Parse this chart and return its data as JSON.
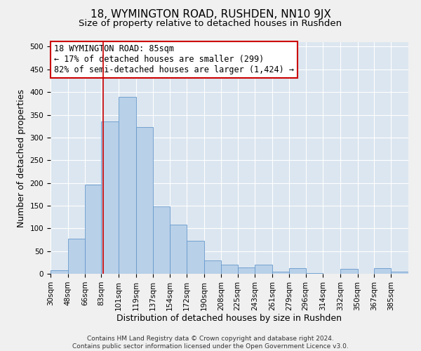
{
  "title": "18, WYMINGTON ROAD, RUSHDEN, NN10 9JX",
  "subtitle": "Size of property relative to detached houses in Rushden",
  "xlabel": "Distribution of detached houses by size in Rushden",
  "ylabel": "Number of detached properties",
  "bin_labels": [
    "30sqm",
    "48sqm",
    "66sqm",
    "83sqm",
    "101sqm",
    "119sqm",
    "137sqm",
    "154sqm",
    "172sqm",
    "190sqm",
    "208sqm",
    "225sqm",
    "243sqm",
    "261sqm",
    "279sqm",
    "296sqm",
    "314sqm",
    "332sqm",
    "350sqm",
    "367sqm",
    "385sqm"
  ],
  "bin_edges": [
    30,
    48,
    66,
    83,
    101,
    119,
    137,
    154,
    172,
    190,
    208,
    225,
    243,
    261,
    279,
    296,
    314,
    332,
    350,
    367,
    385
  ],
  "values": [
    8,
    78,
    197,
    336,
    390,
    323,
    149,
    108,
    73,
    30,
    20,
    14,
    20,
    5,
    13,
    1,
    0,
    11,
    0,
    12,
    5
  ],
  "bar_color": "#b8d0e8",
  "bar_edge_color": "#6699cc",
  "property_size": 85,
  "annotation_line1": "18 WYMINGTON ROAD: 85sqm",
  "annotation_line2": "← 17% of detached houses are smaller (299)",
  "annotation_line3": "82% of semi-detached houses are larger (1,424) →",
  "annotation_box_color": "#ffffff",
  "annotation_box_edge_color": "#cc0000",
  "vline_color": "#cc0000",
  "ylim": [
    0,
    510
  ],
  "yticks": [
    0,
    50,
    100,
    150,
    200,
    250,
    300,
    350,
    400,
    450,
    500
  ],
  "background_color": "#dce6f0",
  "grid_color": "#ffffff",
  "fig_background": "#f0f0f0",
  "footer_text": "Contains HM Land Registry data © Crown copyright and database right 2024.\nContains public sector information licensed under the Open Government Licence v3.0.",
  "title_fontsize": 11,
  "subtitle_fontsize": 9.5,
  "xlabel_fontsize": 9,
  "ylabel_fontsize": 9,
  "tick_fontsize": 7.5,
  "annotation_fontsize": 8.5,
  "footer_fontsize": 6.5
}
